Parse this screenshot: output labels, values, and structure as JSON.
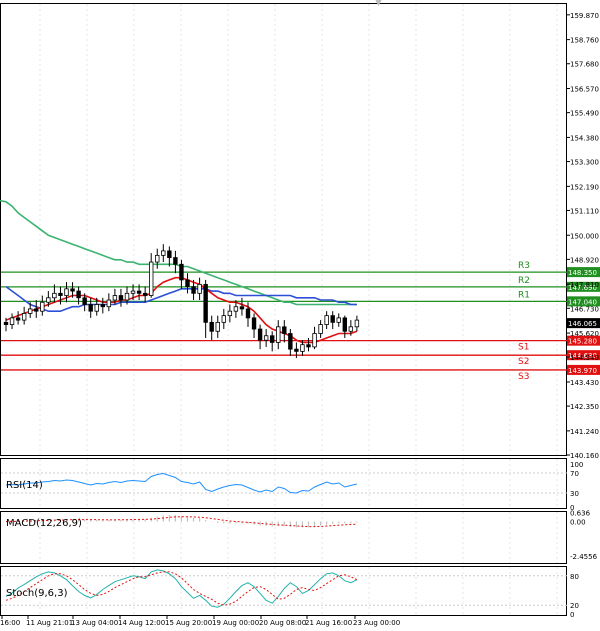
{
  "chart_data": {
    "type": "candlestick",
    "price_panel": {
      "y_ticks": [
        "159.870",
        "158.760",
        "157.680",
        "156.570",
        "155.490",
        "154.380",
        "153.300",
        "152.190",
        "151.110",
        "150.000",
        "148.920",
        "147.810",
        "146.730",
        "145.620",
        "144.540",
        "143.430",
        "142.350",
        "141.240",
        "140.160"
      ],
      "ylim": [
        140.16,
        160.4
      ],
      "levels": [
        {
          "name": "R3",
          "value": 148.35,
          "label": "148.350",
          "role": "resistance"
        },
        {
          "name": "R2",
          "value": 147.69,
          "label": "147.690",
          "role": "resistance"
        },
        {
          "name": "R1",
          "value": 147.04,
          "label": "147.040",
          "role": "resistance"
        },
        {
          "name": "S1",
          "value": 145.28,
          "label": "145.280",
          "role": "support"
        },
        {
          "name": "S2",
          "value": 144.63,
          "label": "144.630",
          "role": "support"
        },
        {
          "name": "S3",
          "value": 143.97,
          "label": "143.970",
          "role": "support"
        }
      ],
      "current_price": {
        "value": 146.065,
        "label": "146.065"
      },
      "candles": [
        [
          146.1,
          146.0,
          146.3,
          145.7
        ],
        [
          146.0,
          146.3,
          146.5,
          145.8
        ],
        [
          146.3,
          146.2,
          146.6,
          146.0
        ],
        [
          146.2,
          146.5,
          146.8,
          146.0
        ],
        [
          146.5,
          146.7,
          147.0,
          146.3
        ],
        [
          146.7,
          146.6,
          147.1,
          146.3
        ],
        [
          146.6,
          147.0,
          147.3,
          146.4
        ],
        [
          147.0,
          147.2,
          147.5,
          146.8
        ],
        [
          147.2,
          147.4,
          147.8,
          147.0
        ],
        [
          147.4,
          147.3,
          147.7,
          146.9
        ],
        [
          147.3,
          147.6,
          147.9,
          147.0
        ],
        [
          147.6,
          147.5,
          147.9,
          147.2
        ],
        [
          147.5,
          147.2,
          147.7,
          146.9
        ],
        [
          147.2,
          146.9,
          147.4,
          146.6
        ],
        [
          146.9,
          146.6,
          147.2,
          146.3
        ],
        [
          146.6,
          146.9,
          147.2,
          146.4
        ],
        [
          146.9,
          146.8,
          147.2,
          146.5
        ],
        [
          146.8,
          147.1,
          147.4,
          146.6
        ],
        [
          147.1,
          147.3,
          147.6,
          146.9
        ],
        [
          147.3,
          147.1,
          147.6,
          146.8
        ],
        [
          147.1,
          147.4,
          147.7,
          146.9
        ],
        [
          147.4,
          147.5,
          147.8,
          147.1
        ],
        [
          147.5,
          147.4,
          147.8,
          147.1
        ],
        [
          147.4,
          147.3,
          147.7,
          147.0
        ],
        [
          147.3,
          148.8,
          149.2,
          147.2
        ],
        [
          148.8,
          149.1,
          149.4,
          148.5
        ],
        [
          149.1,
          149.3,
          149.6,
          148.8
        ],
        [
          149.3,
          149.0,
          149.5,
          148.6
        ],
        [
          149.0,
          148.7,
          149.3,
          148.3
        ],
        [
          148.7,
          148.0,
          148.9,
          147.6
        ],
        [
          148.0,
          147.7,
          148.3,
          147.4
        ],
        [
          147.7,
          147.4,
          148.0,
          147.1
        ],
        [
          147.4,
          147.8,
          148.1,
          147.1
        ],
        [
          147.8,
          146.1,
          148.0,
          145.4
        ],
        [
          146.1,
          145.7,
          146.4,
          145.3
        ],
        [
          145.7,
          146.1,
          146.4,
          145.4
        ],
        [
          146.1,
          146.4,
          146.7,
          145.8
        ],
        [
          146.4,
          146.6,
          146.9,
          146.1
        ],
        [
          146.6,
          146.8,
          147.1,
          146.3
        ],
        [
          146.8,
          146.7,
          147.2,
          146.4
        ],
        [
          146.7,
          146.3,
          147.0,
          145.9
        ],
        [
          146.3,
          145.8,
          146.5,
          145.4
        ],
        [
          145.8,
          145.3,
          146.0,
          144.9
        ],
        [
          145.3,
          145.5,
          145.8,
          145.0
        ],
        [
          145.5,
          145.2,
          145.7,
          144.8
        ],
        [
          145.2,
          145.9,
          146.2,
          144.9
        ],
        [
          145.9,
          145.6,
          146.2,
          145.2
        ],
        [
          145.6,
          144.9,
          145.8,
          144.6
        ],
        [
          144.9,
          144.8,
          145.2,
          144.5
        ],
        [
          144.8,
          145.1,
          145.3,
          144.6
        ],
        [
          145.1,
          145.0,
          145.4,
          144.8
        ],
        [
          145.0,
          145.6,
          145.9,
          144.9
        ],
        [
          145.6,
          146.0,
          146.2,
          145.4
        ],
        [
          146.0,
          146.4,
          146.6,
          145.8
        ],
        [
          146.4,
          146.1,
          146.6,
          145.8
        ],
        [
          146.1,
          146.3,
          146.5,
          145.9
        ],
        [
          146.3,
          145.7,
          146.4,
          145.4
        ],
        [
          145.7,
          145.9,
          146.2,
          145.5
        ],
        [
          145.9,
          146.2,
          146.4,
          145.7
        ]
      ],
      "ma_red": [
        146.2,
        146.3,
        146.4,
        146.5,
        146.6,
        146.7,
        146.8,
        146.9,
        147.0,
        147.1,
        147.2,
        147.3,
        147.3,
        147.3,
        147.2,
        147.1,
        147.0,
        147.0,
        147.0,
        147.1,
        147.1,
        147.2,
        147.3,
        147.3,
        147.4,
        147.7,
        147.9,
        148.0,
        148.1,
        148.1,
        148.0,
        147.9,
        147.8,
        147.6,
        147.4,
        147.2,
        147.1,
        147.0,
        147.0,
        146.9,
        146.8,
        146.6,
        146.3,
        146.0,
        145.8,
        145.7,
        145.6,
        145.5,
        145.3,
        145.2,
        145.2,
        145.2,
        145.3,
        145.4,
        145.5,
        145.6,
        145.6,
        145.6,
        145.7
      ],
      "ma_blue": [
        147.7,
        147.5,
        147.3,
        147.1,
        146.9,
        146.8,
        146.7,
        146.6,
        146.6,
        146.6,
        146.7,
        146.8,
        146.8,
        146.9,
        146.9,
        146.9,
        146.9,
        146.9,
        146.9,
        147.0,
        147.0,
        147.0,
        147.0,
        147.0,
        147.1,
        147.2,
        147.3,
        147.4,
        147.5,
        147.6,
        147.6,
        147.6,
        147.6,
        147.6,
        147.5,
        147.5,
        147.4,
        147.4,
        147.3,
        147.3,
        147.3,
        147.3,
        147.3,
        147.3,
        147.3,
        147.3,
        147.3,
        147.3,
        147.2,
        147.2,
        147.2,
        147.2,
        147.1,
        147.1,
        147.1,
        147.0,
        147.0,
        146.9,
        146.9
      ],
      "ma_green": [
        151.5,
        151.3,
        151.0,
        150.8,
        150.6,
        150.4,
        150.2,
        150.0,
        149.9,
        149.8,
        149.7,
        149.6,
        149.5,
        149.4,
        149.3,
        149.2,
        149.1,
        149.0,
        148.9,
        148.9,
        148.8,
        148.8,
        148.7,
        148.7,
        148.7,
        148.7,
        148.7,
        148.7,
        148.7,
        148.6,
        148.6,
        148.5,
        148.4,
        148.3,
        148.2,
        148.1,
        148.0,
        147.9,
        147.8,
        147.7,
        147.6,
        147.5,
        147.4,
        147.3,
        147.2,
        147.1,
        147.0,
        147.0,
        146.9,
        146.9,
        146.9,
        146.9,
        146.9,
        146.9,
        146.9,
        146.9,
        146.9,
        146.9,
        146.9
      ]
    },
    "rsi_panel": {
      "label": "RSI(14)",
      "y_ticks": [
        "100",
        "70",
        "30",
        "0"
      ],
      "ylim": [
        0,
        100
      ],
      "values": [
        46,
        47,
        46,
        48,
        50,
        50,
        52,
        53,
        55,
        54,
        56,
        55,
        52,
        49,
        46,
        49,
        48,
        51,
        53,
        51,
        54,
        55,
        54,
        53,
        63,
        67,
        69,
        65,
        61,
        53,
        51,
        48,
        52,
        37,
        33,
        38,
        42,
        45,
        47,
        46,
        41,
        36,
        32,
        36,
        33,
        42,
        39,
        31,
        30,
        35,
        34,
        42,
        47,
        52,
        48,
        50,
        42,
        45,
        48
      ]
    },
    "macd_panel": {
      "label": "MACD(12,26,9)",
      "y_ticks": [
        "0.636",
        "0.00",
        "-2.4556"
      ],
      "ylim": [
        -2.95,
        0.75
      ],
      "histogram": [
        0.02,
        0.03,
        0.04,
        0.05,
        0.07,
        0.08,
        0.1,
        0.12,
        0.14,
        0.15,
        0.17,
        0.18,
        0.17,
        0.15,
        0.12,
        0.11,
        0.1,
        0.11,
        0.13,
        0.13,
        0.15,
        0.17,
        0.17,
        0.16,
        0.27,
        0.36,
        0.43,
        0.46,
        0.46,
        0.4,
        0.34,
        0.27,
        0.24,
        0.1,
        -0.03,
        -0.1,
        -0.13,
        -0.14,
        -0.13,
        -0.13,
        -0.16,
        -0.21,
        -0.28,
        -0.31,
        -0.35,
        -0.33,
        -0.33,
        -0.38,
        -0.42,
        -0.42,
        -0.41,
        -0.36,
        -0.29,
        -0.21,
        -0.17,
        -0.13,
        -0.14,
        -0.12,
        -0.08
      ],
      "signal": [
        0.0,
        0.01,
        0.02,
        0.03,
        0.04,
        0.05,
        0.07,
        0.08,
        0.1,
        0.11,
        0.12,
        0.14,
        0.14,
        0.14,
        0.14,
        0.13,
        0.13,
        0.12,
        0.12,
        0.13,
        0.13,
        0.14,
        0.15,
        0.15,
        0.17,
        0.21,
        0.25,
        0.3,
        0.33,
        0.34,
        0.34,
        0.33,
        0.31,
        0.27,
        0.21,
        0.15,
        0.09,
        0.04,
        0.0,
        -0.03,
        -0.06,
        -0.09,
        -0.13,
        -0.17,
        -0.21,
        -0.24,
        -0.26,
        -0.29,
        -0.32,
        -0.34,
        -0.36,
        -0.36,
        -0.35,
        -0.32,
        -0.29,
        -0.26,
        -0.23,
        -0.21,
        -0.18
      ]
    },
    "stoch_panel": {
      "label": "Stoch(9,6,3)",
      "y_ticks": [
        "80",
        "20",
        "0"
      ],
      "ylim": [
        0,
        100
      ],
      "k": [
        38,
        45,
        55,
        62,
        70,
        78,
        84,
        88,
        86,
        80,
        72,
        60,
        48,
        40,
        35,
        42,
        52,
        60,
        68,
        72,
        76,
        80,
        78,
        74,
        88,
        92,
        90,
        84,
        74,
        58,
        46,
        34,
        40,
        30,
        18,
        16,
        22,
        34,
        48,
        60,
        66,
        58,
        44,
        30,
        24,
        38,
        54,
        66,
        58,
        44,
        50,
        62,
        74,
        84,
        86,
        80,
        70,
        66,
        72
      ],
      "d": [
        30,
        34,
        40,
        48,
        56,
        64,
        72,
        80,
        84,
        84,
        80,
        72,
        62,
        52,
        44,
        40,
        42,
        48,
        56,
        62,
        68,
        74,
        78,
        78,
        82,
        86,
        88,
        88,
        84,
        76,
        64,
        52,
        44,
        38,
        32,
        24,
        20,
        22,
        28,
        38,
        48,
        56,
        58,
        52,
        42,
        32,
        34,
        42,
        52,
        56,
        52,
        50,
        56,
        64,
        72,
        80,
        82,
        78,
        72
      ]
    },
    "x_ticks": [
      "16:00",
      "11 Aug 21:01",
      "13 Aug 04:00",
      "14 Aug 12:00",
      "15 Aug 20:00",
      "19 Aug 00:00",
      "20 Aug 08:00",
      "21 Aug 16:00",
      "23 Aug 00:00"
    ]
  }
}
